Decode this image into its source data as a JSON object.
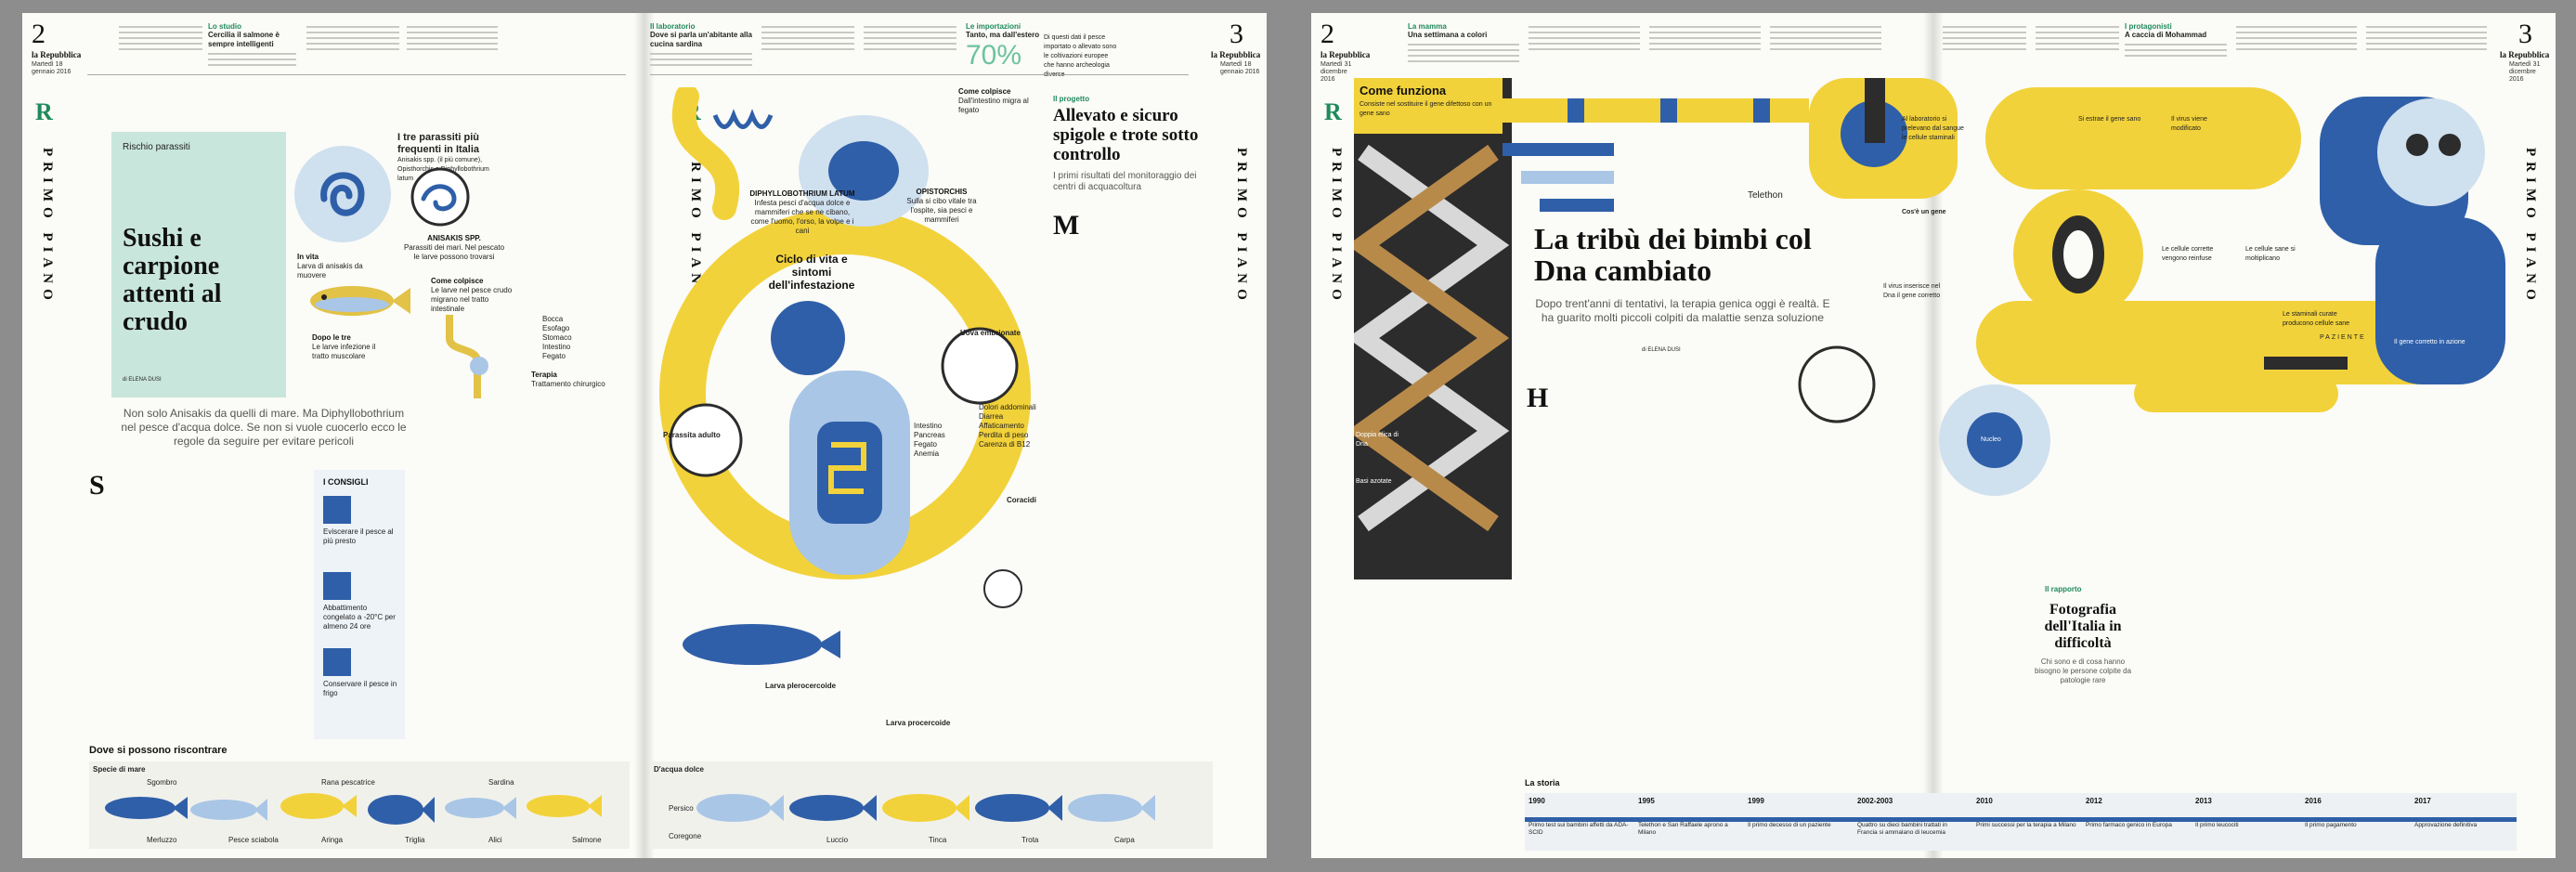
{
  "spreadA": {
    "left_page_number": "2",
    "right_page_number": "3",
    "paper_name": "la Repubblica",
    "date": "Martedì 18 gennaio 2016",
    "logo_initial": "R",
    "section": "PRIMO PIANO",
    "rubric": "Rischio parassiti",
    "title": "Sushi e carpione attenti al crudo",
    "byline": "di ELENA DUSI",
    "lede": "Non solo Anisakis da quelli di mare. Ma Diphyllobothrium nel pesce d'acqua dolce. Se non si vuole cuocerlo ecco le regole da seguire per evitare pericoli",
    "dropcap": "S",
    "studio_kicker": "Lo studio",
    "studio_title": "Cercilia il salmone è sempre intelligenti",
    "lab_kicker": "Il laboratorio",
    "lab_title": "Dove si parla un'abitante alla cucina sardina",
    "import_kicker": "Le importazioni",
    "import_title": "Tanto, ma dall'estero",
    "import_percent": "70%",
    "import_note": "Di questi dati il pesce importato o allevato sono le coltivazioni europee che hanno archeologia diverse",
    "three_parasites_title": "I tre parassiti più frequenti in Italia",
    "three_parasites_text": "Anisakis spp. (il più comune), Opisthorchis e Diphyllobothrium latum",
    "in_vita": "In vita",
    "in_vita_text": "Larva di anisakis da muovere",
    "anisakis_label": "ANISAKIS SPP.",
    "anisakis_text": "Parassiti dei mari. Nel pescato le larve possono trovarsi",
    "dopo_le_tre": "Dopo le tre",
    "dopo_le_tre_text": "Le larve infezione il tratto muscolare",
    "come_colpisce": "Come colpisce",
    "come_colpisce_text": "Le larve nel pesce crudo migrano nel tratto intestinale",
    "organs": [
      "Bocca",
      "Esofago",
      "Stomaco",
      "Intestino",
      "Fegato"
    ],
    "terapia": "Terapia",
    "terapia_text": "Trattamento chirurgico",
    "consigli_title": "I CONSIGLI",
    "consigli": [
      "Eviscerare il pesce al più presto",
      "Abbattimento congelato a -20°C per almeno 24 ore",
      "Conservare il pesce in frigo"
    ],
    "dove_label": "Dove si possono riscontrare",
    "mare_label": "Specie di mare",
    "dolce_label": "D'acqua dolce",
    "sea_fish": [
      "Sgombro",
      "Merluzzo",
      "Pesce sciabola",
      "Rana pescatrice",
      "Aringa",
      "Triglia",
      "Sardina",
      "Alici",
      "Salmone"
    ],
    "fresh_fish": [
      "Persico",
      "Coregone",
      "Luccio",
      "Tinca",
      "Trota",
      "Carpa"
    ],
    "cycle_title": "Ciclo di vita e sintomi dell'infestazione",
    "diphyllo_label": "DIPHYLLOBOTHRIUM LATUM",
    "diphyllo_text": "Infesta pesci d'acqua dolce e mammiferi che se ne cibano, come l'uomo, l'orso, la volpe e i cani",
    "opistorchis_label": "OPISTORCHIS",
    "opistorchis_text": "Sulla si cibo vitale tra l'ospite, sia pesci e mammiferi",
    "come_colpisce2": "Come colpisce",
    "come_colpisce2_text": "Dall'intestino migra al fegato",
    "uova_label": "Uova embrionate",
    "parassita_label": "Parassita adulto",
    "larva_label": "Larva plerocercoide",
    "larva2_label": "Larva procercoide",
    "coracidi_label": "Coracidi",
    "cycle_organs": [
      "Intestino",
      "Pancreas",
      "Fegato",
      "Anemia"
    ],
    "symptoms": [
      "Dolori addominali",
      "Diarrea",
      "Affaticamento",
      "Perdita di peso",
      "Carenza di B12"
    ],
    "allevato_kicker": "Il progetto",
    "allevato_title": "Allevato e sicuro spigole e trote sotto controllo",
    "allevato_lede": "I primi risultati del monitoraggio dei centri di acquacoltura",
    "allevato_dropcap": "M"
  },
  "spreadB": {
    "left_page_number": "2",
    "right_page_number": "3",
    "paper_name": "la Repubblica",
    "date": "Martedì 31 dicembre 2016",
    "logo_initial": "R",
    "section": "PRIMO PIANO",
    "info_title": "Come funziona",
    "info_sub": "Consiste nel sostituire il gene difettoso con un gene sano",
    "rubric": "Telethon",
    "title": "La tribù dei bimbi col Dna cambiato",
    "lede": "Dopo trent'anni di tentativi, la terapia genica oggi è realtà. E ha guarito molti piccoli colpiti da malattie senza soluzione",
    "byline": "di ELENA DUSI",
    "dropcap": "H",
    "kicker1": "La mamma",
    "kicker1_title": "Una settimana a colori",
    "kicker2": "I protagonisti",
    "kicker2_title": "A caccia di Mohammad",
    "rapporto_kicker": "Il rapporto",
    "rapporto_title": "Fotografia dell'Italia in difficoltà",
    "rapporto_lede": "Chi sono e di cosa hanno bisogno le persone colpite da patologie rare",
    "steps": [
      "Al laboratorio si prelevano dal sangue le cellule staminali",
      "Si estrae il gene sano",
      "Il virus viene modificato",
      "Cos'è un gene",
      "Il virus inserisce nel Dna il gene corretto",
      "Le cellule corrette vengono reinfuse",
      "Le cellule sane si moltiplicano",
      "Le staminali curate producono cellule sane",
      "Il gene corretto in azione"
    ],
    "storie_label": "La storia",
    "timeline": [
      {
        "year": "1990",
        "text": "Primo test sui bambini affetti da ADA-SCID"
      },
      {
        "year": "1995",
        "text": "Telethon e San Raffaele aprono a Milano"
      },
      {
        "year": "1999",
        "text": "Il primo decesso di un paziente"
      },
      {
        "year": "2002-2003",
        "text": "Quattro su dieci bambini trattati in Francia si ammalano di leucemia"
      },
      {
        "year": "2010",
        "text": "Primi successi per la terapia a Milano"
      },
      {
        "year": "2012",
        "text": "Primo farmaco genico in Europa"
      },
      {
        "year": "2013",
        "text": "Il primo leucociti"
      },
      {
        "year": "2016",
        "text": "Il primo pagamento"
      },
      {
        "year": "2017",
        "text": "Approvazione definitiva"
      }
    ],
    "side_label_left": "Doppia elica di Dna",
    "side_label_left2": "Basi azotate",
    "patient_label": "PAZIENTE",
    "nucleus_label": "Nucleo"
  },
  "colors": {
    "blue": "#2f5fa8",
    "light_blue": "#a9c6e6",
    "yellow": "#f2d23a",
    "green_accent": "#1f8a5b",
    "dark": "#2c2c2c",
    "paper": "#fbfbf7"
  }
}
